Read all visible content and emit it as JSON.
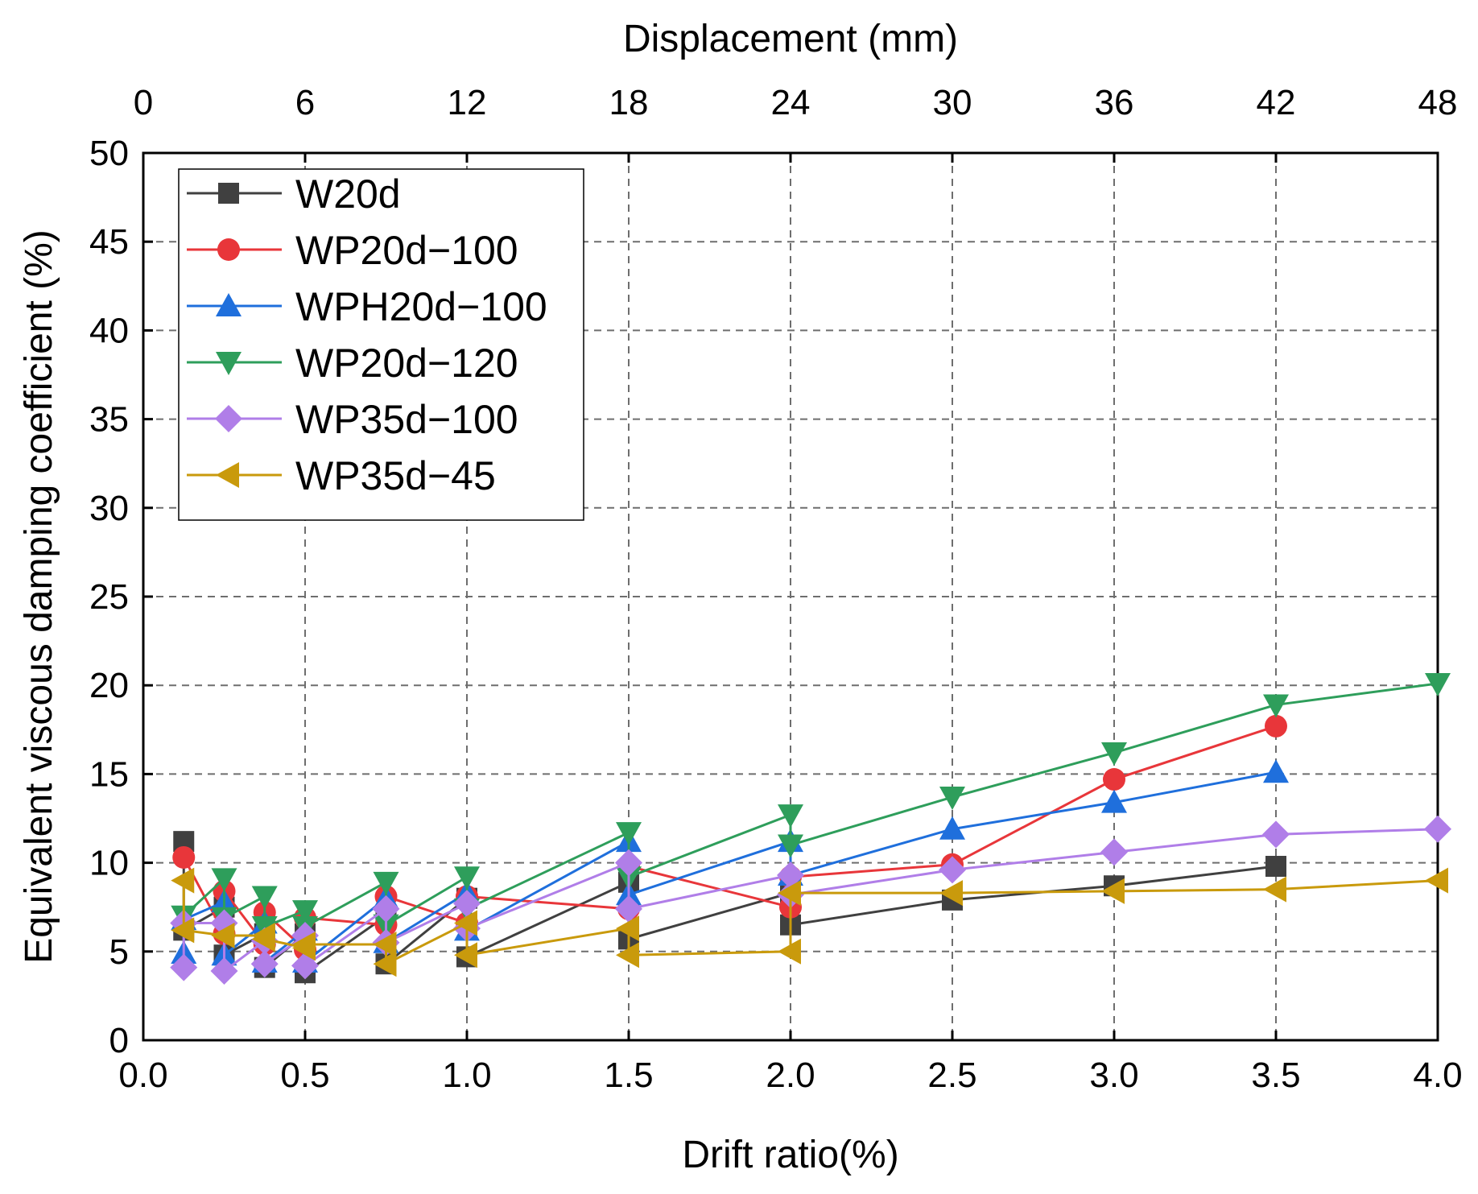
{
  "chart_data": {
    "type": "line",
    "xlabel": "Drift ratio(%)",
    "x2label": "Displacement (mm)",
    "ylabel": "Equivalent viscous damping coefficient (%)",
    "xlim": [
      0,
      4.0
    ],
    "ylim": [
      0,
      50
    ],
    "x_ticks": [
      "0.0",
      "0.5",
      "1.0",
      "1.5",
      "2.0",
      "2.5",
      "3.0",
      "3.5",
      "4.0"
    ],
    "x2_ticks": [
      "0",
      "6",
      "12",
      "18",
      "24",
      "30",
      "36",
      "42",
      "48"
    ],
    "y_ticks": [
      "0",
      "5",
      "10",
      "15",
      "20",
      "25",
      "30",
      "35",
      "40",
      "45",
      "50"
    ],
    "grid": true,
    "legend_position": "top-left",
    "series": [
      {
        "name": "W20d",
        "color": "#404040",
        "marker": "square",
        "x": [
          0.125,
          0.125,
          0.25,
          0.25,
          0.375,
          0.375,
          0.5,
          0.5,
          0.75,
          0.75,
          1.0,
          1.0,
          1.5,
          1.5,
          2.0,
          2.0,
          2.5,
          3.0,
          3.5
        ],
        "y": [
          11.2,
          6.2,
          7.5,
          4.8,
          6.0,
          4.1,
          6.0,
          3.8,
          7.0,
          4.3,
          8.0,
          4.7,
          8.9,
          5.7,
          8.3,
          6.5,
          7.9,
          8.7,
          9.8
        ]
      },
      {
        "name": "WP20d-100",
        "color": "#e8363a",
        "marker": "circle",
        "x": [
          0.125,
          0.25,
          0.25,
          0.375,
          0.375,
          0.5,
          0.5,
          0.75,
          0.75,
          1.0,
          1.0,
          1.5,
          1.5,
          2.0,
          2.0,
          2.5,
          3.0,
          3.5
        ],
        "y": [
          10.3,
          6.0,
          8.4,
          5.4,
          7.2,
          5.1,
          6.9,
          6.5,
          8.1,
          6.6,
          8.1,
          7.4,
          9.8,
          7.5,
          9.2,
          9.9,
          14.7,
          17.7
        ]
      },
      {
        "name": "WPH20d-100",
        "color": "#1f6fdc",
        "marker": "triangle-up",
        "x": [
          0.125,
          0.125,
          0.25,
          0.25,
          0.375,
          0.375,
          0.5,
          0.5,
          0.75,
          0.75,
          1.0,
          1.0,
          1.5,
          1.5,
          2.0,
          2.0,
          2.5,
          3.0,
          3.5
        ],
        "y": [
          4.9,
          6.8,
          7.8,
          4.8,
          6.6,
          4.4,
          6.2,
          4.4,
          8.0,
          5.5,
          8.3,
          6.2,
          11.2,
          8.2,
          11.2,
          9.3,
          11.9,
          13.4,
          15.1
        ]
      },
      {
        "name": "WP20d-120",
        "color": "#2e9e5b",
        "marker": "triangle-down",
        "x": [
          0.125,
          0.25,
          0.25,
          0.375,
          0.375,
          0.5,
          0.5,
          0.75,
          0.75,
          1.0,
          1.0,
          1.5,
          1.5,
          2.0,
          2.0,
          2.5,
          3.0,
          3.5,
          4.0
        ],
        "y": [
          7.0,
          9.1,
          6.9,
          8.1,
          6.4,
          7.3,
          6.4,
          8.9,
          6.5,
          9.2,
          7.4,
          11.7,
          9.2,
          12.7,
          11.0,
          13.7,
          16.2,
          18.9,
          20.1
        ]
      },
      {
        "name": "WP35d-100",
        "color": "#b07ee8",
        "marker": "diamond",
        "x": [
          0.125,
          0.125,
          0.25,
          0.25,
          0.375,
          0.375,
          0.5,
          0.5,
          0.75,
          0.75,
          1.0,
          1.0,
          1.5,
          1.5,
          2.0,
          2.0,
          2.5,
          3.0,
          3.5,
          4.0
        ],
        "y": [
          4.1,
          6.6,
          6.6,
          3.9,
          5.6,
          4.3,
          5.9,
          4.2,
          7.4,
          5.5,
          7.7,
          6.3,
          10.0,
          7.4,
          9.3,
          8.2,
          9.6,
          10.6,
          11.6,
          11.9
        ]
      },
      {
        "name": "WP35d-45",
        "color": "#c99a0c",
        "marker": "triangle-left",
        "x": [
          0.125,
          0.125,
          0.25,
          0.25,
          0.375,
          0.375,
          0.5,
          0.5,
          0.75,
          0.75,
          1.0,
          1.0,
          1.5,
          1.5,
          2.0,
          2.0,
          2.5,
          3.0,
          3.5,
          4.0
        ],
        "y": [
          9.0,
          6.2,
          5.9,
          5.9,
          5.9,
          5.7,
          5.2,
          5.4,
          5.4,
          4.3,
          6.6,
          4.8,
          6.3,
          4.8,
          5.0,
          8.3,
          8.3,
          8.4,
          8.5,
          9.0
        ]
      }
    ]
  }
}
